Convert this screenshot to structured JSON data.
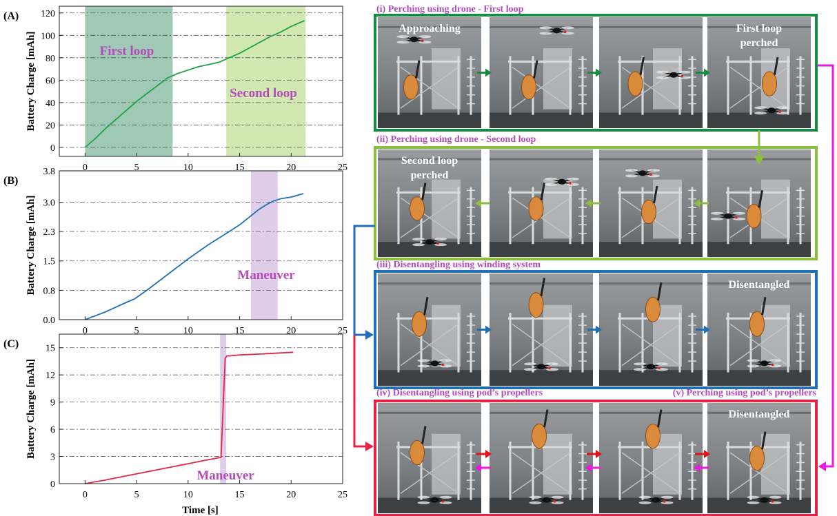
{
  "colors": {
    "stage1": "#178a44",
    "stage2": "#8cbf3f",
    "stage3": "#1f6fb8",
    "stage4": "#e32447",
    "magenta": "#ea18e6",
    "label_purple": "#b44cbc",
    "shade_A1": "#8fbfa8",
    "shade_A2": "#c9e5a3",
    "shade_maneuver": "#d8c6e6",
    "line_A": "#1aa34a",
    "line_B": "#1f6fb8",
    "line_C": "#e32447",
    "photo_text": "#ffffff"
  },
  "chart_data": [
    {
      "panel_label": "(A)",
      "type": "line",
      "ylabel": "Battery Charge [mAh]",
      "xlim": [
        -2.5,
        25
      ],
      "ylim": [
        -8,
        126
      ],
      "xticks": [
        0,
        5,
        10,
        15,
        20,
        25
      ],
      "yticks": [
        0,
        20,
        40,
        60,
        80,
        100,
        120
      ],
      "ytick_labels": [
        "0",
        "20",
        "40",
        "60",
        "80",
        "100",
        "120"
      ],
      "grid": true,
      "x": [
        0,
        1,
        2,
        3,
        4,
        5,
        6,
        7,
        8,
        9,
        10,
        11,
        12,
        13,
        14,
        15,
        16,
        17,
        18,
        19,
        20,
        21,
        21.3
      ],
      "y": [
        0,
        8,
        17,
        25,
        33,
        41,
        48,
        55,
        62,
        66,
        69,
        72,
        74,
        76,
        80,
        84,
        89,
        94,
        99,
        103,
        108,
        112,
        113
      ],
      "spans": [
        {
          "from": 0,
          "to": 8.5,
          "label": "First loop",
          "color_key": "shade_A1"
        },
        {
          "from": 13.7,
          "to": 21.4,
          "label": "Second loop",
          "color_key": "shade_A2"
        }
      ],
      "series_color_key": "line_A"
    },
    {
      "panel_label": "(B)",
      "type": "line",
      "ylabel": "Battery Charge [mAh]",
      "xlim": [
        -2.5,
        25
      ],
      "ylim": [
        0,
        3.8
      ],
      "xticks": [
        0,
        5,
        10,
        15,
        20,
        25
      ],
      "yticks": [
        0,
        0.75,
        1.5,
        2.25,
        3.0,
        3.8
      ],
      "ytick_labels": [
        "0.0",
        "0.8",
        "1.5",
        "2.3",
        "3.0",
        "3.8"
      ],
      "grid": true,
      "x": [
        0,
        1,
        2,
        3,
        4,
        4.8,
        6,
        8,
        10,
        12,
        14,
        15,
        16,
        16.8,
        17.5,
        18.2,
        19,
        20,
        21.2
      ],
      "y": [
        0,
        0.1,
        0.2,
        0.32,
        0.44,
        0.53,
        0.75,
        1.15,
        1.55,
        1.92,
        2.25,
        2.42,
        2.63,
        2.8,
        2.92,
        3.02,
        3.09,
        3.13,
        3.22
      ],
      "spans": [
        {
          "from": 16.1,
          "to": 18.7,
          "label": "Maneuver",
          "color_key": "shade_maneuver"
        }
      ],
      "series_color_key": "line_B"
    },
    {
      "panel_label": "(C)",
      "type": "line",
      "ylabel": "Battery Charge [mAh]",
      "xlabel": "Time [s]",
      "xlim": [
        -2.5,
        25
      ],
      "ylim": [
        0,
        16.5
      ],
      "xticks": [
        0,
        5,
        10,
        15,
        20,
        25
      ],
      "yticks": [
        0,
        3,
        6,
        9,
        12,
        15
      ],
      "ytick_labels": [
        "0",
        "3",
        "6",
        "9",
        "12",
        "15"
      ],
      "grid": true,
      "x": [
        0,
        2,
        4,
        6,
        8,
        10,
        12,
        13.2,
        13.6,
        13.75,
        14,
        15,
        17,
        20.2
      ],
      "y": [
        0,
        0.4,
        0.85,
        1.3,
        1.75,
        2.2,
        2.65,
        2.9,
        13.8,
        14.1,
        14.1,
        14.2,
        14.3,
        14.5
      ],
      "spans": [
        {
          "from": 13.1,
          "to": 13.7,
          "label": "Maneuver",
          "color_key": "shade_maneuver"
        }
      ],
      "series_color_key": "line_C"
    }
  ],
  "stages": [
    {
      "title": "(i) Perching using drone - First loop",
      "color_key": "stage1",
      "captions": [
        "Approaching",
        "",
        "",
        "First loop\nperched"
      ]
    },
    {
      "title": "(ii) Perching using drone - Second loop",
      "color_key": "stage2",
      "captions": [
        "Second loop\nperched",
        "",
        "",
        ""
      ]
    },
    {
      "title": "(iii) Disentangling using winding system",
      "color_key": "stage3",
      "captions": [
        "",
        "",
        "",
        "Disentangled"
      ]
    },
    {
      "title": "(iv) Disentangling using pod’s propellers",
      "title2": "(v) Perching using pod’s propellers",
      "color_key": "stage4",
      "captions": [
        "",
        "",
        "",
        "Disentangled"
      ]
    }
  ]
}
